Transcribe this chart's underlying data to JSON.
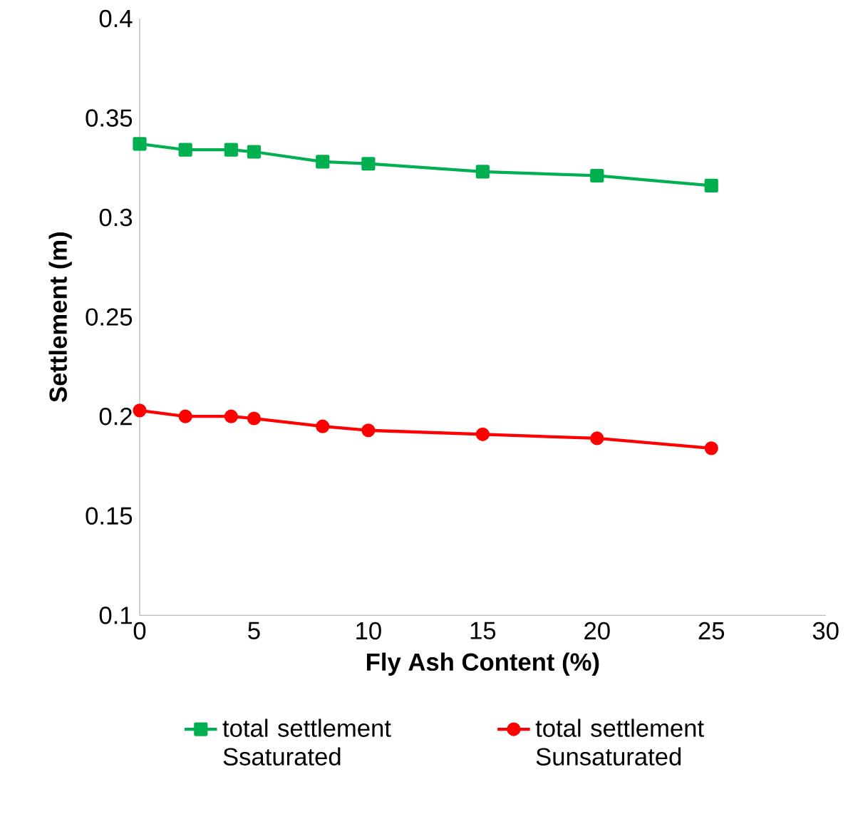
{
  "chart_data": {
    "type": "line",
    "xlabel": "Fly Ash Content (%)",
    "ylabel": "Settlement (m)",
    "xlim": [
      0,
      30
    ],
    "xticks": [
      0,
      5,
      10,
      15,
      20,
      25,
      30
    ],
    "ylim": [
      0.1,
      0.4
    ],
    "yticks": [
      0.1,
      0.15,
      0.2,
      0.25,
      0.3,
      0.35,
      0.4
    ],
    "x": [
      0,
      2,
      4,
      5,
      8,
      10,
      15,
      20,
      25
    ],
    "grid": false,
    "legend": "bottom",
    "line_style": "solid",
    "series": [
      {
        "name": "total settlement Ssaturated",
        "color": "#00b050",
        "marker": "square",
        "values": [
          0.337,
          0.334,
          0.334,
          0.333,
          0.328,
          0.327,
          0.323,
          0.321,
          0.316
        ]
      },
      {
        "name": "total settlement Sunsaturated",
        "color": "#ff0000",
        "marker": "circle",
        "values": [
          0.203,
          0.2,
          0.2,
          0.199,
          0.195,
          0.193,
          0.191,
          0.189,
          0.184
        ]
      }
    ]
  }
}
